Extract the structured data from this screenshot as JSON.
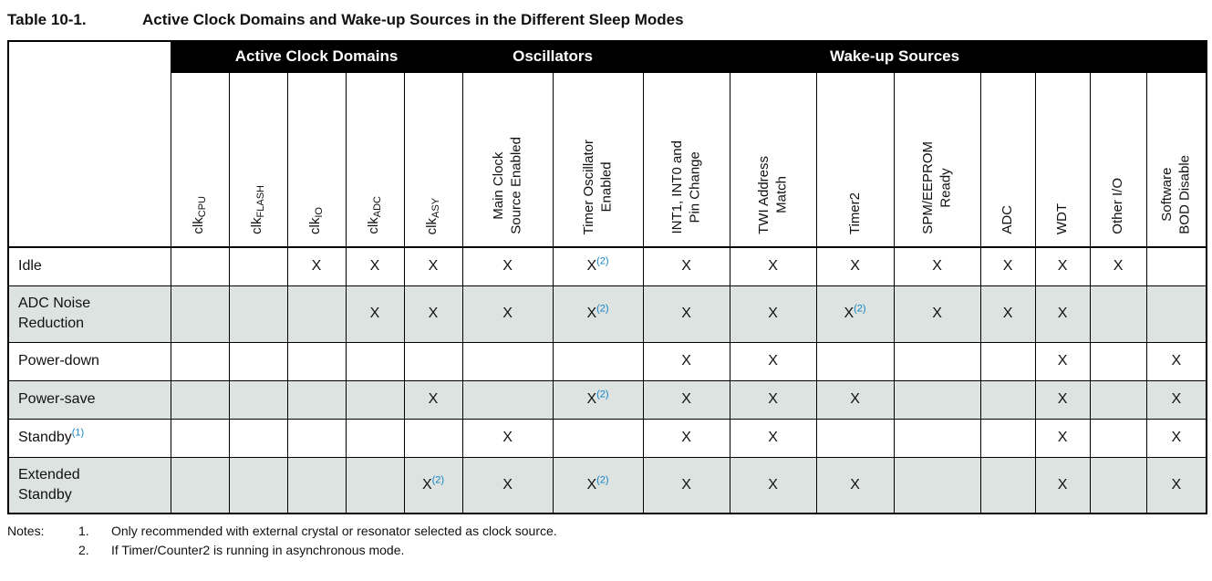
{
  "colors": {
    "band_bg": "#000000",
    "band_fg": "#ffffff",
    "row_shade": "#dce3e1",
    "sup_accent": "#1684c4",
    "border": "#000000",
    "text": "#111111"
  },
  "title": {
    "label": "Table 10-1.",
    "text": "Active Clock Domains and Wake-up Sources in the Different Sleep Modes"
  },
  "table": {
    "group_headers": [
      {
        "id": "active-clock-domains",
        "label": "Active Clock Domains",
        "span": 5
      },
      {
        "id": "oscillators",
        "label": "Oscillators",
        "span": 2
      },
      {
        "id": "wake-up-sources",
        "label": "Wake-up Sources",
        "span": 7
      },
      {
        "id": "blank",
        "label": "",
        "span": 1
      }
    ],
    "columns": [
      {
        "name": "clk-cpu",
        "base": "clk",
        "sub": "CPU"
      },
      {
        "name": "clk-flash",
        "base": "clk",
        "sub": "FLASH"
      },
      {
        "name": "clk-io",
        "base": "clk",
        "sub": "IO"
      },
      {
        "name": "clk-adc",
        "base": "clk",
        "sub": "ADC"
      },
      {
        "name": "clk-asy",
        "base": "clk",
        "sub": "ASY"
      },
      {
        "name": "main-clock-source-enabled",
        "lines": [
          "Main Clock",
          "Source Enabled"
        ]
      },
      {
        "name": "timer-oscillator-enabled",
        "lines": [
          "Timer Oscillator",
          "Enabled"
        ]
      },
      {
        "name": "int1-int0-and-pin-change",
        "lines": [
          "INT1, INT0 and",
          "Pin Change"
        ]
      },
      {
        "name": "twi-address-match",
        "lines": [
          "TWI Address",
          "Match"
        ]
      },
      {
        "name": "timer2",
        "lines": [
          "Timer2"
        ]
      },
      {
        "name": "spm-eeprom-ready",
        "lines": [
          "SPM/EEPROM",
          "Ready"
        ]
      },
      {
        "name": "adc",
        "lines": [
          "ADC"
        ]
      },
      {
        "name": "wdt",
        "lines": [
          "WDT"
        ]
      },
      {
        "name": "other-io",
        "lines": [
          "Other I/O"
        ]
      },
      {
        "name": "software-bod-disable",
        "lines": [
          "Software",
          "BOD Disable"
        ]
      }
    ],
    "rows": [
      {
        "mode_lines": [
          "Idle"
        ],
        "mode_sup": "",
        "cells": [
          "",
          "",
          "X",
          "X",
          "X",
          "X",
          "X(2)",
          "X",
          "X",
          "X",
          "X",
          "X",
          "X",
          "X",
          ""
        ]
      },
      {
        "mode_lines": [
          "ADC Noise",
          "Reduction"
        ],
        "mode_sup": "",
        "cells": [
          "",
          "",
          "",
          "X",
          "X",
          "X",
          "X(2)",
          "X",
          "X",
          "X(2)",
          "X",
          "X",
          "X",
          "",
          ""
        ]
      },
      {
        "mode_lines": [
          "Power-down"
        ],
        "mode_sup": "",
        "cells": [
          "",
          "",
          "",
          "",
          "",
          "",
          "",
          "X",
          "X",
          "",
          "",
          "",
          "X",
          "",
          "X"
        ]
      },
      {
        "mode_lines": [
          "Power-save"
        ],
        "mode_sup": "",
        "cells": [
          "",
          "",
          "",
          "",
          "X",
          "",
          "X(2)",
          "X",
          "X",
          "X",
          "",
          "",
          "X",
          "",
          "X"
        ]
      },
      {
        "mode_lines": [
          "Standby"
        ],
        "mode_sup": "(1)",
        "cells": [
          "",
          "",
          "",
          "",
          "",
          "X",
          "",
          "X",
          "X",
          "",
          "",
          "",
          "X",
          "",
          "X"
        ]
      },
      {
        "mode_lines": [
          "Extended",
          "Standby"
        ],
        "mode_sup": "",
        "cells": [
          "",
          "",
          "",
          "",
          "X(2)",
          "X",
          "X(2)",
          "X",
          "X",
          "X",
          "",
          "",
          "X",
          "",
          "X"
        ]
      }
    ]
  },
  "notes": {
    "label": "Notes:",
    "items": [
      {
        "num": "1.",
        "text": "Only recommended with external crystal or resonator selected as clock source."
      },
      {
        "num": "2.",
        "text": "If Timer/Counter2 is running in asynchronous mode."
      }
    ]
  }
}
